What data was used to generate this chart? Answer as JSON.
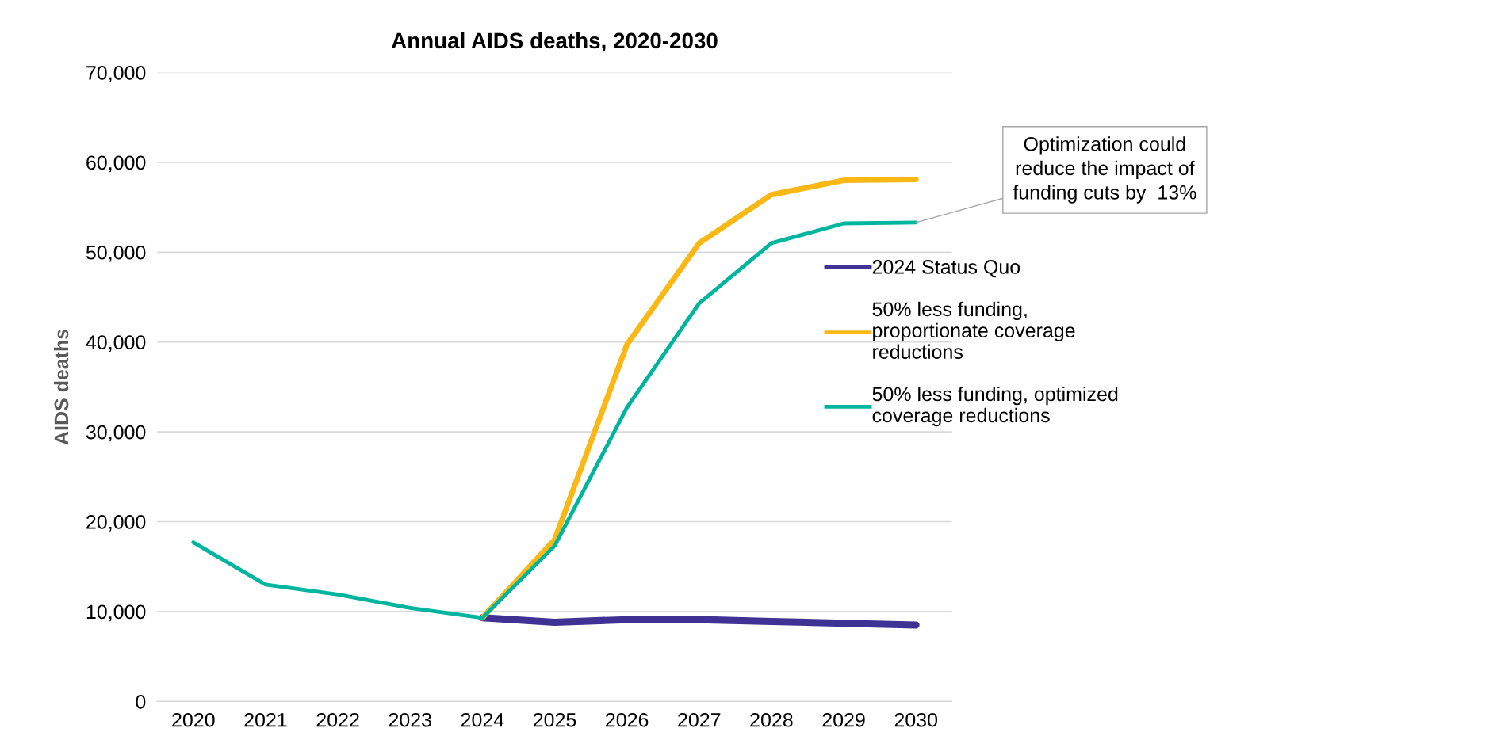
{
  "chart_data": {
    "type": "line",
    "title": "Annual AIDS deaths, 2020-2030",
    "ylabel": "AIDS deaths",
    "categories": [
      "2020",
      "2021",
      "2022",
      "2023",
      "2024",
      "2025",
      "2026",
      "2027",
      "2028",
      "2029",
      "2030"
    ],
    "series": [
      {
        "name": "2024 Status Quo",
        "color": "#3f3294",
        "values": [
          null,
          null,
          null,
          null,
          9300,
          8800,
          9100,
          9100,
          8900,
          8700,
          8500
        ]
      },
      {
        "name": "50% less funding, proportionate coverage reductions",
        "color": "#fbb714",
        "values": [
          null,
          null,
          null,
          null,
          9300,
          18000,
          39700,
          51000,
          56400,
          58000,
          58100
        ]
      },
      {
        "name": "50% less funding, optimized coverage reductions",
        "color": "#00b5a0",
        "values": [
          17700,
          13000,
          11900,
          10400,
          9300,
          17300,
          32700,
          44300,
          51000,
          53200,
          53300
        ]
      }
    ],
    "ylim": [
      0,
      70000
    ],
    "yticks": [
      {
        "value": 0,
        "label": "0"
      },
      {
        "value": 10000,
        "label": "10,000"
      },
      {
        "value": 20000,
        "label": "20,000"
      },
      {
        "value": 30000,
        "label": "30,000"
      },
      {
        "value": 40000,
        "label": "40,000"
      },
      {
        "value": 50000,
        "label": "50,000"
      },
      {
        "value": 60000,
        "label": "60,000"
      },
      {
        "value": 70000,
        "label": "70,000"
      }
    ],
    "grid": "y",
    "legend": "right",
    "marker": "none",
    "line_style": "solid",
    "annotations": [
      {
        "text": "Optimization could\nreduce the impact of\nfunding cuts by  13%",
        "x": "2030",
        "y": 53300
      }
    ]
  }
}
